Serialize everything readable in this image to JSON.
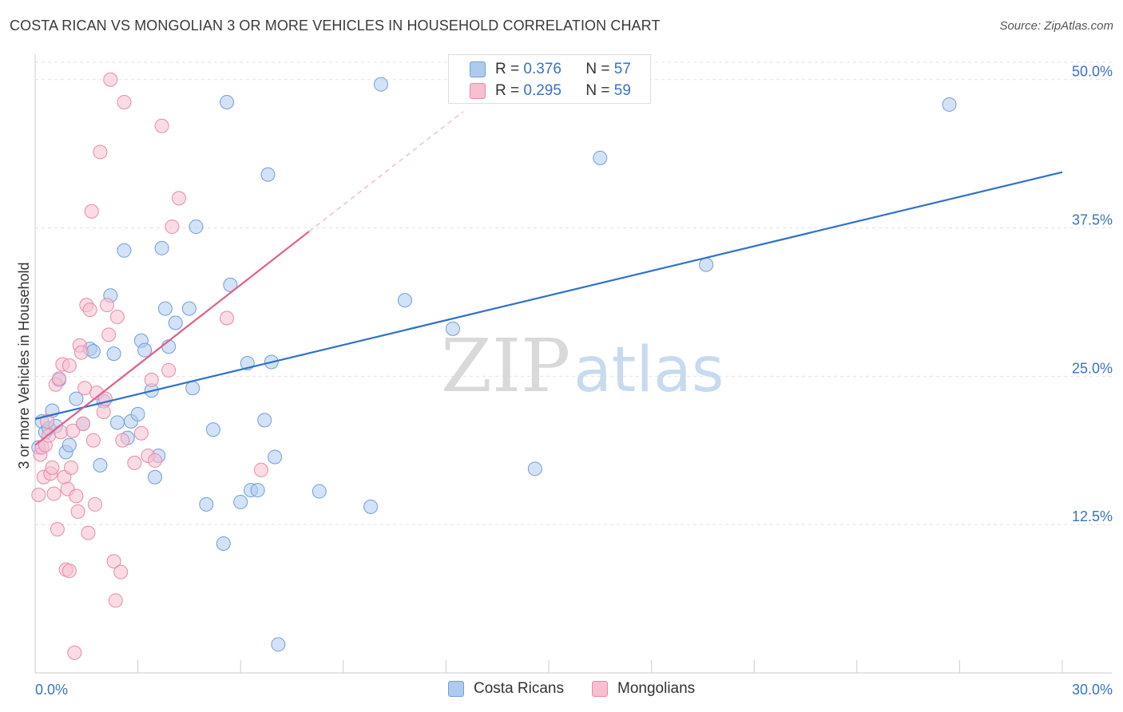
{
  "header": {
    "title": "COSTA RICAN VS MONGOLIAN 3 OR MORE VEHICLES IN HOUSEHOLD CORRELATION CHART",
    "source": "Source: ZipAtlas.com"
  },
  "watermark": {
    "zip": "ZIP",
    "atlas": "atlas"
  },
  "stats": [
    {
      "r_label": "R =",
      "r_value": "0.376",
      "n_label": "N =",
      "n_value": "57"
    },
    {
      "r_label": "R =",
      "r_value": "0.295",
      "n_label": "N =",
      "n_value": "59"
    }
  ],
  "colors": {
    "blue_fill": "#aecbef",
    "blue_stroke": "#6f9fd8",
    "blue_line": "#2f72c8",
    "pink_fill": "#f7bfd0",
    "pink_stroke": "#e88aa8",
    "pink_line": "#e0608a",
    "axis_text": "#3a72c4",
    "grid": "#e3e3e3"
  },
  "chart_data": {
    "type": "scatter",
    "title": "COSTA RICAN VS MONGOLIAN 3 OR MORE VEHICLES IN HOUSEHOLD CORRELATION CHART",
    "xlabel": "",
    "ylabel": "3 or more Vehicles in Household",
    "xlim": [
      0,
      30
    ],
    "ylim": [
      0,
      52
    ],
    "x_tick_labels": [
      "0.0%",
      "30.0%"
    ],
    "y_tick_labels": [
      "12.5%",
      "25.0%",
      "37.5%",
      "50.0%"
    ],
    "y_ticks": [
      12.5,
      25.0,
      37.5,
      50.0
    ],
    "grid": "horizontal dashed",
    "legend_position": "bottom",
    "series": [
      {
        "name": "Costa Ricans",
        "color": "#aecbef",
        "points": [
          [
            0.1,
            19.0
          ],
          [
            0.2,
            21.2
          ],
          [
            0.3,
            20.3
          ],
          [
            0.4,
            20.6
          ],
          [
            0.5,
            22.1
          ],
          [
            0.6,
            20.8
          ],
          [
            0.7,
            24.7
          ],
          [
            0.9,
            18.6
          ],
          [
            1.0,
            19.2
          ],
          [
            1.2,
            23.1
          ],
          [
            1.4,
            21.0
          ],
          [
            1.6,
            27.3
          ],
          [
            1.7,
            27.1
          ],
          [
            1.9,
            17.5
          ],
          [
            2.0,
            22.9
          ],
          [
            2.2,
            31.8
          ],
          [
            2.3,
            26.9
          ],
          [
            2.4,
            21.1
          ],
          [
            2.6,
            35.6
          ],
          [
            2.7,
            19.8
          ],
          [
            2.8,
            21.2
          ],
          [
            3.0,
            21.8
          ],
          [
            3.1,
            28.0
          ],
          [
            3.2,
            27.2
          ],
          [
            3.4,
            23.8
          ],
          [
            3.5,
            16.5
          ],
          [
            3.6,
            18.3
          ],
          [
            3.7,
            35.8
          ],
          [
            3.8,
            30.7
          ],
          [
            3.9,
            27.5
          ],
          [
            4.1,
            29.5
          ],
          [
            4.5,
            30.7
          ],
          [
            4.6,
            24.0
          ],
          [
            4.7,
            37.6
          ],
          [
            5.0,
            14.2
          ],
          [
            5.2,
            20.5
          ],
          [
            5.5,
            10.9
          ],
          [
            5.6,
            48.1
          ],
          [
            5.7,
            32.7
          ],
          [
            6.0,
            14.4
          ],
          [
            6.2,
            26.1
          ],
          [
            6.3,
            15.4
          ],
          [
            6.5,
            15.4
          ],
          [
            6.7,
            21.3
          ],
          [
            6.8,
            42.0
          ],
          [
            6.9,
            26.2
          ],
          [
            7.0,
            18.2
          ],
          [
            7.1,
            2.4
          ],
          [
            8.3,
            15.3
          ],
          [
            9.8,
            14.0
          ],
          [
            10.1,
            49.6
          ],
          [
            10.8,
            31.4
          ],
          [
            12.2,
            29.0
          ],
          [
            14.6,
            17.2
          ],
          [
            16.5,
            43.4
          ],
          [
            19.6,
            34.4
          ],
          [
            26.7,
            47.9
          ]
        ]
      },
      {
        "name": "Mongolians",
        "color": "#f7bfd0",
        "points": [
          [
            0.1,
            15.0
          ],
          [
            0.15,
            18.4
          ],
          [
            0.2,
            19.0
          ],
          [
            0.25,
            16.5
          ],
          [
            0.3,
            19.2
          ],
          [
            0.35,
            21.2
          ],
          [
            0.4,
            20.0
          ],
          [
            0.45,
            16.8
          ],
          [
            0.5,
            17.3
          ],
          [
            0.55,
            15.1
          ],
          [
            0.6,
            24.3
          ],
          [
            0.65,
            12.1
          ],
          [
            0.7,
            24.8
          ],
          [
            0.75,
            20.3
          ],
          [
            0.8,
            26.0
          ],
          [
            0.85,
            16.5
          ],
          [
            0.9,
            8.7
          ],
          [
            0.95,
            15.5
          ],
          [
            1.0,
            8.6
          ],
          [
            1.05,
            17.3
          ],
          [
            1.1,
            20.4
          ],
          [
            1.15,
            1.7
          ],
          [
            1.2,
            14.9
          ],
          [
            1.25,
            13.6
          ],
          [
            1.3,
            27.6
          ],
          [
            1.35,
            27.0
          ],
          [
            1.4,
            21.0
          ],
          [
            1.45,
            24.0
          ],
          [
            1.5,
            31.0
          ],
          [
            1.55,
            11.8
          ],
          [
            1.6,
            30.6
          ],
          [
            1.65,
            38.9
          ],
          [
            1.7,
            19.6
          ],
          [
            1.75,
            14.2
          ],
          [
            1.8,
            23.6
          ],
          [
            1.9,
            43.9
          ],
          [
            2.0,
            22.0
          ],
          [
            2.05,
            23.1
          ],
          [
            2.1,
            31.0
          ],
          [
            2.15,
            28.5
          ],
          [
            2.2,
            50.0
          ],
          [
            2.3,
            9.4
          ],
          [
            2.35,
            6.1
          ],
          [
            2.4,
            30.0
          ],
          [
            2.5,
            8.5
          ],
          [
            2.55,
            19.6
          ],
          [
            2.6,
            48.1
          ],
          [
            2.9,
            17.7
          ],
          [
            3.1,
            20.2
          ],
          [
            3.3,
            18.3
          ],
          [
            3.4,
            24.7
          ],
          [
            3.5,
            17.9
          ],
          [
            3.7,
            46.1
          ],
          [
            3.9,
            25.5
          ],
          [
            4.0,
            37.6
          ],
          [
            4.2,
            40.0
          ],
          [
            5.6,
            29.9
          ],
          [
            6.6,
            17.1
          ],
          [
            1.0,
            25.9
          ]
        ]
      }
    ],
    "trend_lines": [
      {
        "series": "Costa Ricans",
        "x": [
          0,
          30
        ],
        "y": [
          21.4,
          42.2
        ],
        "style": "solid"
      },
      {
        "series": "Mongolians",
        "x": [
          0,
          8.0
        ],
        "y": [
          19.2,
          37.2
        ],
        "style": "solid"
      },
      {
        "series": "Mongolians",
        "x": [
          8.0,
          12.5
        ],
        "y": [
          37.2,
          47.3
        ],
        "style": "dashed"
      }
    ]
  }
}
